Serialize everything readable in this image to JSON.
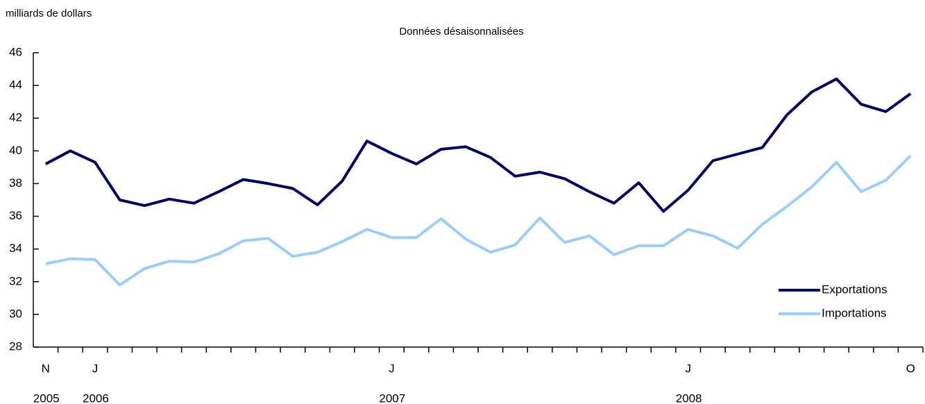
{
  "chart_data": {
    "type": "line",
    "subtitle": "Données désaisonnalisées",
    "y_label": "milliards de dollars",
    "categories": [
      "N",
      null,
      "J",
      null,
      null,
      null,
      null,
      null,
      null,
      null,
      null,
      null,
      null,
      null,
      "J",
      null,
      null,
      null,
      null,
      null,
      null,
      null,
      null,
      null,
      null,
      null,
      "J",
      null,
      null,
      null,
      null,
      null,
      null,
      null,
      null,
      "O"
    ],
    "category_years": [
      "2005",
      null,
      "2006",
      null,
      null,
      null,
      null,
      null,
      null,
      null,
      null,
      null,
      null,
      null,
      "2007",
      null,
      null,
      null,
      null,
      null,
      null,
      null,
      null,
      null,
      null,
      null,
      "2008",
      null,
      null,
      null,
      null,
      null,
      null,
      null,
      null,
      null
    ],
    "series": [
      {
        "name": "Exportations",
        "color": "#000066",
        "values": [
          39.2,
          40.0,
          39.3,
          37.0,
          36.65,
          37.05,
          36.8,
          37.5,
          38.25,
          38.0,
          37.7,
          36.7,
          38.15,
          40.6,
          39.85,
          39.2,
          40.1,
          40.25,
          39.6,
          38.45,
          38.7,
          38.3,
          37.5,
          36.8,
          38.05,
          36.3,
          37.6,
          39.4,
          39.8,
          40.2,
          42.2,
          43.6,
          44.4,
          42.85,
          42.4,
          43.5
        ]
      },
      {
        "name": "Importations",
        "color": "#99ccff",
        "values": [
          33.1,
          33.4,
          33.35,
          31.8,
          32.8,
          33.25,
          33.2,
          33.7,
          34.5,
          34.65,
          33.55,
          33.8,
          34.45,
          35.2,
          34.7,
          34.7,
          35.85,
          34.6,
          33.8,
          34.25,
          35.9,
          34.4,
          34.8,
          33.65,
          34.2,
          34.2,
          35.2,
          34.8,
          34.05,
          35.5,
          36.6,
          37.8,
          39.3,
          37.5,
          38.2,
          39.7
        ]
      }
    ],
    "ylim": [
      28,
      46
    ],
    "yticks": [
      28,
      30,
      32,
      34,
      36,
      38,
      40,
      42,
      44,
      46
    ],
    "legend": "lower right"
  }
}
